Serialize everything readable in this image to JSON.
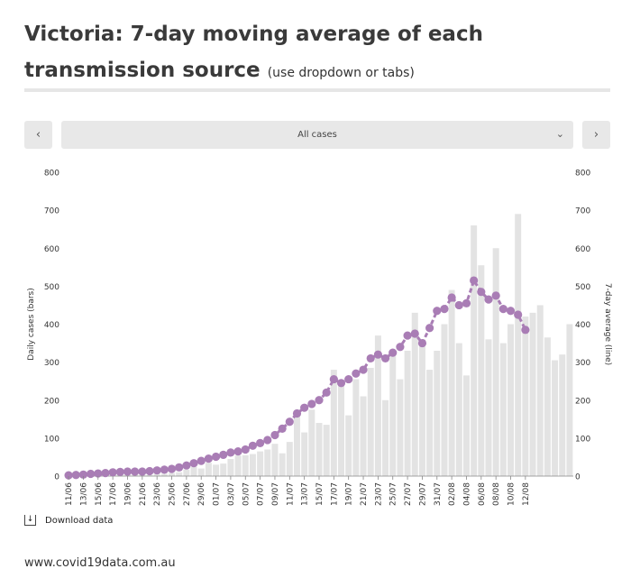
{
  "header": {
    "title_main": "Victoria: 7-day moving average of each transmission source",
    "title_sub": "(use dropdown or tabs)"
  },
  "controls": {
    "prev_icon": "‹",
    "next_icon": "›",
    "select_value": "All cases",
    "chevron_icon": "⌄"
  },
  "download_label": "Download data",
  "footer_text": "www.covid19data.com.au",
  "colors": {
    "bar": "#e3e3e3",
    "line": "#a97db5",
    "axis": "#333333"
  },
  "chart_data": {
    "type": "bar+line",
    "ylabel_left": "Daily cases (bars)",
    "ylabel_right": "7-day average (line)",
    "ylim": [
      0,
      800
    ],
    "yticks": [
      0,
      100,
      200,
      300,
      400,
      500,
      600,
      700,
      800
    ],
    "xtick_labels": [
      "11/06",
      "13/06",
      "15/06",
      "17/06",
      "19/06",
      "21/06",
      "23/06",
      "25/06",
      "27/06",
      "29/06",
      "01/07",
      "03/07",
      "05/07",
      "07/07",
      "09/07",
      "11/07",
      "13/07",
      "15/07",
      "17/07",
      "19/07",
      "21/07",
      "23/07",
      "25/07",
      "27/07",
      "29/07",
      "31/07",
      "02/08",
      "04/08",
      "06/08",
      "08/08",
      "10/08",
      "12/08"
    ],
    "daily_cases": [
      0,
      1,
      2,
      6,
      3,
      4,
      4,
      5,
      4,
      4,
      3,
      3,
      6,
      6,
      8,
      10,
      17,
      25,
      20,
      35,
      30,
      33,
      45,
      54,
      55,
      58,
      65,
      70,
      85,
      60,
      90,
      160,
      115,
      175,
      140,
      135,
      280,
      245,
      160,
      255,
      210,
      285,
      370,
      200,
      325,
      255,
      330,
      430,
      360,
      280,
      330,
      400,
      490,
      350,
      265,
      660,
      555,
      360,
      600,
      350,
      400,
      690,
      420,
      430,
      450,
      365,
      305,
      320,
      400
    ],
    "moving_avg": [
      2,
      3,
      4,
      6,
      7,
      8,
      10,
      11,
      12,
      12,
      12,
      13,
      15,
      17,
      19,
      23,
      28,
      34,
      40,
      46,
      51,
      56,
      62,
      65,
      70,
      80,
      87,
      95,
      108,
      125,
      143,
      165,
      180,
      190,
      200,
      220,
      255,
      245,
      255,
      270,
      280,
      310,
      320,
      310,
      325,
      340,
      370,
      375,
      350,
      390,
      435,
      440,
      470,
      450,
      455,
      515,
      485,
      465,
      475,
      440,
      435,
      425,
      385
    ]
  }
}
